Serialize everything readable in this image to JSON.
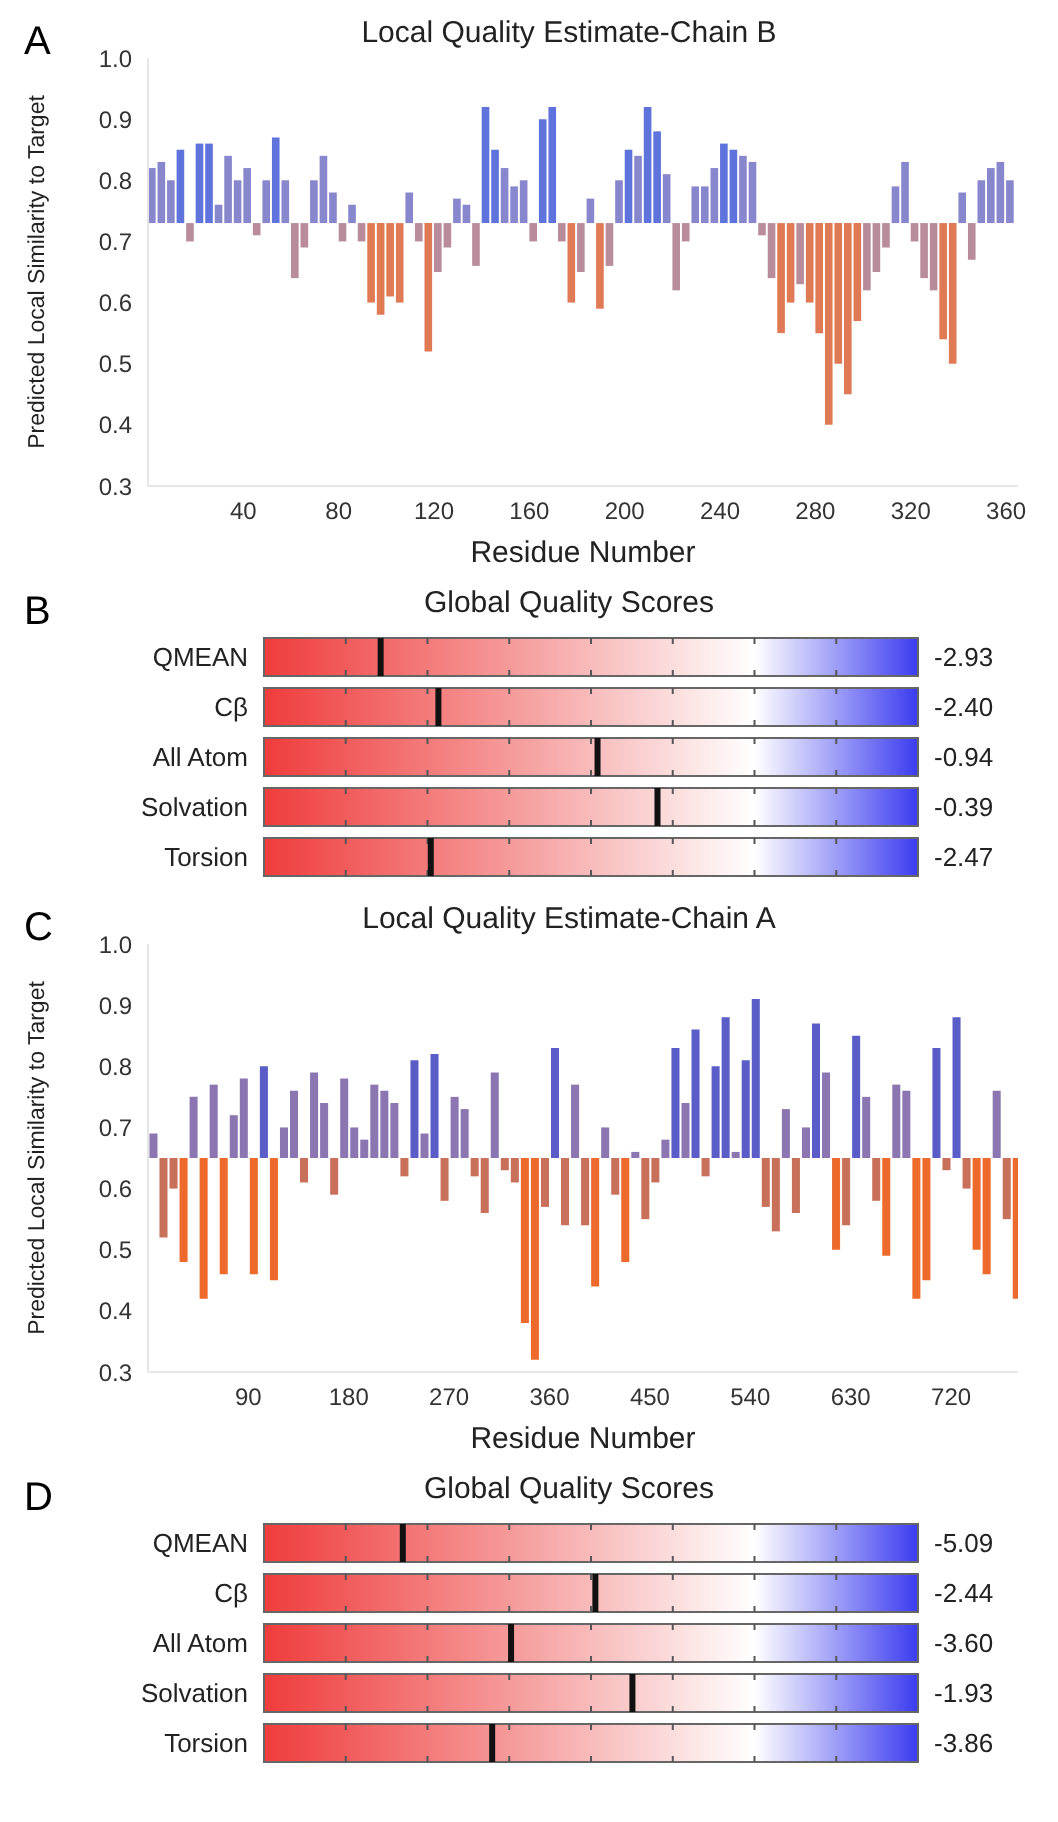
{
  "chart_data": [
    {
      "type": "bar",
      "title": "Local Quality Estimate-Chain B",
      "xlabel": "Residue Number",
      "ylabel": "Predicted Local Similarity to Target",
      "annotations": [
        "A"
      ],
      "x": [
        2,
        6,
        10,
        14,
        18,
        22,
        26,
        30,
        34,
        38,
        42,
        46,
        50,
        54,
        58,
        62,
        66,
        70,
        74,
        78,
        82,
        86,
        90,
        94,
        98,
        102,
        106,
        110,
        114,
        118,
        122,
        126,
        130,
        134,
        138,
        142,
        146,
        150,
        154,
        158,
        162,
        166,
        170,
        174,
        178,
        182,
        186,
        190,
        194,
        198,
        202,
        206,
        210,
        214,
        218,
        222,
        226,
        230,
        234,
        238,
        242,
        246,
        250,
        254,
        258,
        262,
        266,
        270,
        274,
        278,
        282,
        286,
        290,
        294,
        298,
        302,
        306,
        310,
        314,
        318,
        322,
        326,
        330,
        334,
        338,
        342,
        346,
        350,
        354,
        358,
        362
      ],
      "values": [
        0.09,
        0.1,
        0.07,
        0.12,
        -0.03,
        0.13,
        0.13,
        0.03,
        0.11,
        0.07,
        0.09,
        -0.02,
        0.07,
        0.14,
        0.07,
        -0.09,
        -0.04,
        0.07,
        0.11,
        0.05,
        -0.03,
        0.03,
        -0.03,
        -0.13,
        -0.15,
        -0.12,
        -0.13,
        0.05,
        -0.03,
        -0.21,
        -0.08,
        -0.04,
        0.04,
        0.03,
        -0.07,
        0.19,
        0.12,
        0.09,
        0.06,
        0.07,
        -0.03,
        0.17,
        0.19,
        -0.03,
        -0.13,
        -0.08,
        0.04,
        -0.14,
        -0.07,
        0.07,
        0.12,
        0.11,
        0.19,
        0.15,
        0.08,
        -0.11,
        -0.03,
        0.06,
        0.06,
        0.09,
        0.13,
        0.12,
        0.11,
        0.1,
        -0.02,
        -0.09,
        -0.18,
        -0.13,
        -0.1,
        -0.13,
        -0.18,
        -0.33,
        -0.23,
        -0.28,
        -0.16,
        -0.11,
        -0.08,
        -0.04,
        0.06,
        0.1,
        -0.03,
        -0.09,
        -0.11,
        -0.19,
        -0.23,
        0.05,
        -0.06,
        0.07,
        0.09,
        0.1,
        0.07
      ],
      "base": [
        0.73,
        0.73,
        0.73,
        0.73,
        0.73,
        0.73,
        0.73,
        0.73,
        0.73,
        0.73,
        0.73,
        0.73,
        0.73,
        0.73,
        0.73,
        0.73,
        0.73,
        0.73,
        0.73,
        0.73,
        0.73,
        0.73,
        0.73,
        0.73,
        0.73,
        0.73,
        0.73,
        0.73,
        0.73,
        0.73,
        0.73,
        0.73,
        0.73,
        0.73,
        0.73,
        0.73,
        0.73,
        0.73,
        0.73,
        0.73,
        0.73,
        0.73,
        0.73,
        0.73,
        0.73,
        0.73,
        0.73,
        0.73,
        0.73,
        0.73,
        0.73,
        0.73,
        0.73,
        0.73,
        0.73,
        0.73,
        0.73,
        0.73,
        0.73,
        0.73,
        0.73,
        0.73,
        0.73,
        0.73,
        0.73,
        0.73,
        0.73,
        0.73,
        0.73,
        0.73,
        0.73,
        0.73,
        0.73,
        0.73,
        0.73,
        0.73,
        0.73,
        0.73,
        0.73,
        0.73,
        0.73,
        0.73,
        0.73,
        0.73,
        0.73,
        0.73,
        0.73,
        0.73,
        0.73,
        0.73,
        0.73
      ],
      "colors": [
        "#8886cc",
        "#8886cc",
        "#8886cc",
        "#5f73dc",
        "#b98c9c",
        "#5f73dc",
        "#5f73dc",
        "#8886cc",
        "#8886cc",
        "#8886cc",
        "#8886cc",
        "#b98c9c",
        "#8886cc",
        "#5f73dc",
        "#8886cc",
        "#b98c9c",
        "#b98c9c",
        "#8886cc",
        "#8886cc",
        "#8886cc",
        "#b98c9c",
        "#8886cc",
        "#b98c9c",
        "#e07a55",
        "#e07a55",
        "#e07a55",
        "#e07a55",
        "#8886cc",
        "#b98c9c",
        "#e07a55",
        "#b98c9c",
        "#b98c9c",
        "#8886cc",
        "#8886cc",
        "#b98c9c",
        "#5f73dc",
        "#5f73dc",
        "#8886cc",
        "#8886cc",
        "#8886cc",
        "#b98c9c",
        "#5f73dc",
        "#5f73dc",
        "#b98c9c",
        "#e07a55",
        "#b98c9c",
        "#8886cc",
        "#e07a55",
        "#b98c9c",
        "#8886cc",
        "#5f73dc",
        "#8886cc",
        "#5f73dc",
        "#5f73dc",
        "#8886cc",
        "#b98c9c",
        "#b98c9c",
        "#8886cc",
        "#8886cc",
        "#8886cc",
        "#5f73dc",
        "#5f73dc",
        "#8886cc",
        "#8886cc",
        "#b98c9c",
        "#b98c9c",
        "#e07a55",
        "#e07a55",
        "#b98c9c",
        "#e07a55",
        "#e07a55",
        "#e07a55",
        "#e07a55",
        "#e07a55",
        "#e07a55",
        "#b98c9c",
        "#b98c9c",
        "#b98c9c",
        "#8886cc",
        "#8886cc",
        "#b98c9c",
        "#b98c9c",
        "#b98c9c",
        "#e07a55",
        "#e07a55",
        "#8886cc",
        "#b98c9c",
        "#8886cc",
        "#8886cc",
        "#8886cc",
        "#8886cc"
      ],
      "xlim": [
        0,
        365
      ],
      "xticks": [
        40,
        80,
        120,
        160,
        200,
        240,
        280,
        320,
        360
      ],
      "ylim": [
        0.3,
        1.0
      ],
      "yticks": [
        0.3,
        0.4,
        0.5,
        0.6,
        0.7,
        0.8,
        0.9,
        {
          "value": 1.0,
          "label": "1.0"
        }
      ]
    },
    {
      "type": "other",
      "title": "Global Quality Scores",
      "annotations": [
        "B"
      ],
      "categories": [
        "QMEAN",
        "Cβ",
        "All Atom",
        "Solvation",
        "Torsion"
      ],
      "values": [
        -2.93,
        -2.4,
        -0.94,
        -0.39,
        -2.47
      ],
      "value_labels": [
        "-2.93",
        "-2.40",
        "-0.94",
        "-0.39",
        "-2.47"
      ],
      "color": "#111111"
    },
    {
      "type": "bar",
      "title": "Local Quality Estimate-Chain A",
      "xlabel": "Residue Number",
      "ylabel": "Predicted Local Similarity to Target",
      "annotations": [
        "C"
      ],
      "x": [
        4,
        13,
        22,
        31,
        40,
        49,
        58,
        67,
        76,
        85,
        94,
        103,
        112,
        121,
        130,
        139,
        148,
        157,
        166,
        175,
        184,
        193,
        202,
        211,
        220,
        229,
        238,
        247,
        256,
        265,
        274,
        283,
        292,
        301,
        310,
        319,
        328,
        337,
        346,
        355,
        364,
        373,
        382,
        391,
        400,
        409,
        418,
        427,
        436,
        445,
        454,
        463,
        472,
        481,
        490,
        499,
        508,
        517,
        526,
        535,
        544,
        553,
        562,
        571,
        580,
        589,
        598,
        607,
        616,
        625,
        634,
        643,
        652,
        661,
        670,
        679,
        688,
        697,
        706,
        715,
        724,
        733,
        742,
        751,
        760,
        769,
        778
      ],
      "values": [
        0.04,
        -0.13,
        -0.05,
        -0.17,
        0.1,
        -0.23,
        0.12,
        -0.19,
        0.07,
        0.13,
        -0.19,
        0.15,
        -0.2,
        0.05,
        0.11,
        -0.04,
        0.14,
        0.09,
        -0.06,
        0.13,
        0.05,
        0.03,
        0.12,
        0.11,
        0.09,
        -0.03,
        0.16,
        0.04,
        0.17,
        -0.07,
        0.1,
        0.08,
        -0.03,
        -0.09,
        0.14,
        -0.02,
        -0.04,
        -0.27,
        -0.33,
        -0.08,
        0.18,
        -0.11,
        0.12,
        -0.11,
        -0.21,
        0.05,
        -0.06,
        -0.17,
        0.01,
        -0.1,
        -0.04,
        0.03,
        0.18,
        0.09,
        0.21,
        -0.03,
        0.15,
        0.23,
        0.01,
        0.16,
        0.26,
        -0.08,
        -0.12,
        0.08,
        -0.09,
        0.05,
        0.22,
        0.14,
        -0.15,
        -0.11,
        0.2,
        0.1,
        -0.07,
        -0.16,
        0.12,
        0.11,
        -0.23,
        -0.2,
        0.18,
        -0.02,
        0.23,
        -0.05,
        -0.15,
        -0.19,
        0.11,
        -0.1,
        -0.23
      ],
      "base": [
        0.65,
        0.65,
        0.65,
        0.65,
        0.65,
        0.65,
        0.65,
        0.65,
        0.65,
        0.65,
        0.65,
        0.65,
        0.65,
        0.65,
        0.65,
        0.65,
        0.65,
        0.65,
        0.65,
        0.65,
        0.65,
        0.65,
        0.65,
        0.65,
        0.65,
        0.65,
        0.65,
        0.65,
        0.65,
        0.65,
        0.65,
        0.65,
        0.65,
        0.65,
        0.65,
        0.65,
        0.65,
        0.65,
        0.65,
        0.65,
        0.65,
        0.65,
        0.65,
        0.65,
        0.65,
        0.65,
        0.65,
        0.65,
        0.65,
        0.65,
        0.65,
        0.65,
        0.65,
        0.65,
        0.65,
        0.65,
        0.65,
        0.65,
        0.65,
        0.65,
        0.65,
        0.65,
        0.65,
        0.65,
        0.65,
        0.65,
        0.65,
        0.65,
        0.65,
        0.65,
        0.65,
        0.65,
        0.65,
        0.65,
        0.65,
        0.65,
        0.65,
        0.65,
        0.65,
        0.65,
        0.65,
        0.65,
        0.65,
        0.65,
        0.65,
        0.65,
        0.65
      ],
      "colors": [
        "#8c76b2",
        "#c8705a",
        "#c8705a",
        "#ee6a2c",
        "#8c76b2",
        "#ee6a2c",
        "#8c76b2",
        "#ee6a2c",
        "#8c76b2",
        "#8c76b2",
        "#ee6a2c",
        "#5a5cc8",
        "#ee6a2c",
        "#8c76b2",
        "#8c76b2",
        "#c8705a",
        "#8c76b2",
        "#8c76b2",
        "#c8705a",
        "#8c76b2",
        "#8c76b2",
        "#8c76b2",
        "#8c76b2",
        "#8c76b2",
        "#8c76b2",
        "#c8705a",
        "#5a5cc8",
        "#8c76b2",
        "#5a5cc8",
        "#c8705a",
        "#8c76b2",
        "#8c76b2",
        "#c8705a",
        "#c8705a",
        "#8c76b2",
        "#c8705a",
        "#c8705a",
        "#ee6a2c",
        "#ee6a2c",
        "#c8705a",
        "#5a5cc8",
        "#c8705a",
        "#8c76b2",
        "#c8705a",
        "#ee6a2c",
        "#8c76b2",
        "#c8705a",
        "#ee6a2c",
        "#8c76b2",
        "#c8705a",
        "#c8705a",
        "#8c76b2",
        "#5a5cc8",
        "#8c76b2",
        "#5a5cc8",
        "#c8705a",
        "#5a5cc8",
        "#5a5cc8",
        "#8c76b2",
        "#5a5cc8",
        "#5a5cc8",
        "#c8705a",
        "#c8705a",
        "#8c76b2",
        "#c8705a",
        "#8c76b2",
        "#5a5cc8",
        "#8c76b2",
        "#ee6a2c",
        "#c8705a",
        "#5a5cc8",
        "#8c76b2",
        "#c8705a",
        "#ee6a2c",
        "#8c76b2",
        "#8c76b2",
        "#ee6a2c",
        "#ee6a2c",
        "#5a5cc8",
        "#c8705a",
        "#5a5cc8",
        "#c8705a",
        "#ee6a2c",
        "#ee6a2c",
        "#8c76b2",
        "#c8705a",
        "#ee6a2c"
      ],
      "xlim": [
        0,
        780
      ],
      "xticks": [
        90,
        180,
        270,
        360,
        450,
        540,
        630,
        720
      ],
      "ylim": [
        0.3,
        1.0
      ],
      "yticks": [
        0.3,
        0.4,
        0.5,
        0.6,
        0.7,
        0.8,
        0.9,
        {
          "value": 1.0,
          "label": "1.0"
        }
      ]
    },
    {
      "type": "other",
      "title": "Global Quality Scores",
      "annotations": [
        "D"
      ],
      "categories": [
        "QMEAN",
        "Cβ",
        "All Atom",
        "Solvation",
        "Torsion"
      ],
      "values": [
        -5.09,
        -2.44,
        -3.6,
        -1.93,
        -3.86
      ],
      "value_labels": [
        "-5.09",
        "-2.44",
        "-3.60",
        "-1.93",
        "-3.86"
      ],
      "color": "#111111"
    }
  ]
}
